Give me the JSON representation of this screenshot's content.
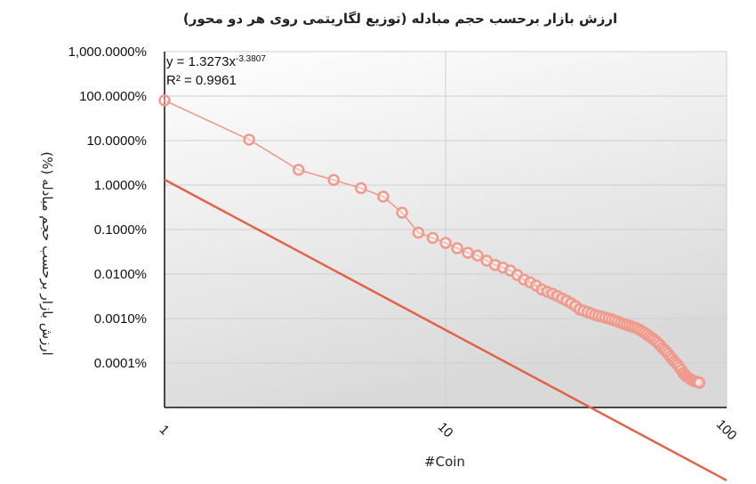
{
  "colors": {
    "series": "#ee9a8c",
    "trendline": "#e06448",
    "plot_bg_top": "#ffffff",
    "plot_bg_bottom": "#d9d9d9",
    "gridline": "#cfcfcf",
    "axis": "#111111"
  },
  "chart_data": {
    "type": "scatter",
    "title": "ارزش بازار برحسب حجم مبادله (توزیع لگاریتمی روی هر دو محور)",
    "xlabel": "#Coin",
    "ylabel": "ارزش بازار برحسب حجم مبادله   (%)",
    "x_scale": "log",
    "y_scale": "log",
    "xlim": [
      1,
      100
    ],
    "ylim": [
      1e-05,
      1000
    ],
    "x_ticks": [
      {
        "value": 1,
        "label": "1"
      },
      {
        "value": 10,
        "label": "10"
      },
      {
        "value": 100,
        "label": "100"
      }
    ],
    "y_ticks": [
      {
        "value": 1000,
        "label": "1,000.0000%"
      },
      {
        "value": 100,
        "label": "100.0000%"
      },
      {
        "value": 10,
        "label": "10.0000%"
      },
      {
        "value": 1,
        "label": "1.0000%"
      },
      {
        "value": 0.1,
        "label": "0.1000%"
      },
      {
        "value": 0.01,
        "label": "0.0100%"
      },
      {
        "value": 0.001,
        "label": "0.0010%"
      },
      {
        "value": 0.0001,
        "label": "0.0001%"
      }
    ],
    "grid": true,
    "legend": "none",
    "trendline": {
      "type": "power",
      "coefficient": 1.3273,
      "exponent": -3.3807,
      "equation_label": "y = 1.3273x",
      "exponent_label": "-3.3807",
      "r2_label": "R² = 0.9961",
      "r2": 0.9961
    },
    "series": [
      {
        "x": [
          1,
          2,
          3,
          4,
          5,
          6,
          7,
          8,
          9,
          10,
          11,
          12,
          13,
          14,
          15,
          16,
          17,
          18,
          19,
          20,
          21,
          22,
          23,
          24,
          25,
          26,
          27,
          28,
          29,
          30,
          31,
          32,
          33,
          34,
          35,
          36,
          37,
          38,
          39,
          40,
          41,
          42,
          43,
          44,
          45,
          46,
          47,
          48,
          49,
          50,
          51,
          52,
          53,
          54,
          55,
          56,
          57,
          58,
          59,
          60,
          61,
          62,
          63,
          64,
          65,
          66,
          67,
          68,
          69,
          70,
          71,
          72,
          73,
          74,
          75,
          76,
          77,
          78,
          79,
          80
        ],
        "y": [
          80,
          10.5,
          2.2,
          1.3,
          0.85,
          0.55,
          0.24,
          0.085,
          0.065,
          0.05,
          0.038,
          0.03,
          0.026,
          0.02,
          0.016,
          0.014,
          0.012,
          0.0095,
          0.0075,
          0.0065,
          0.0055,
          0.0045,
          0.004,
          0.0036,
          0.0032,
          0.0028,
          0.0025,
          0.0022,
          0.0019,
          0.0016,
          0.0015,
          0.0014,
          0.0013,
          0.0012,
          0.00115,
          0.0011,
          0.00105,
          0.001,
          0.00095,
          0.0009,
          0.00085,
          0.0008,
          0.00076,
          0.00072,
          0.00069,
          0.00066,
          0.00063,
          0.0006,
          0.00056,
          0.00052,
          0.00048,
          0.00044,
          0.0004,
          0.00037,
          0.00034,
          0.00031,
          0.00028,
          0.00025,
          0.00022,
          0.0002,
          0.00018,
          0.00016,
          0.00014,
          0.000125,
          0.00011,
          0.0001,
          9e-05,
          8e-05,
          7e-05,
          6e-05,
          5.5e-05,
          5e-05,
          4.7e-05,
          4.4e-05,
          4.2e-05,
          4e-05,
          3.9e-05,
          3.8e-05,
          3.7e-05,
          3.6e-05
        ]
      }
    ]
  }
}
